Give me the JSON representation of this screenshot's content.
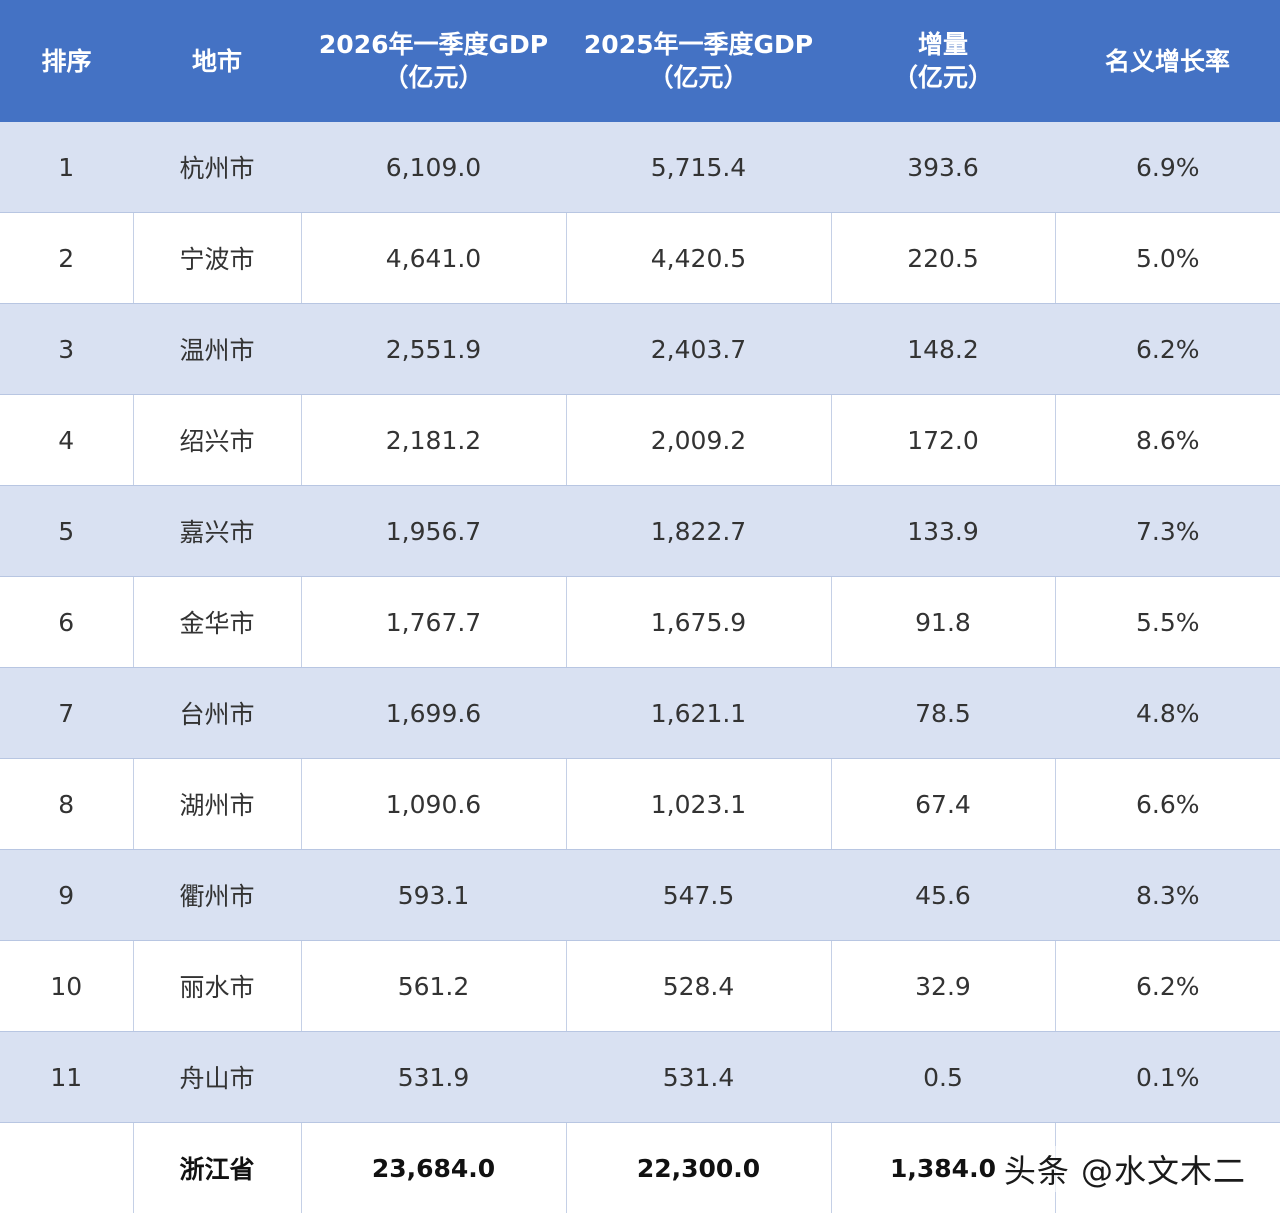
{
  "headers": {
    "rank": "排序",
    "city": "地市",
    "gdp2026_l1": "2026年一季度GDP",
    "gdp2026_l2": "（亿元）",
    "gdp2025_l1": "2025年一季度GDP",
    "gdp2025_l2": "（亿元）",
    "increase_l1": "增量",
    "increase_l2": "（亿元）",
    "growth": "名义增长率"
  },
  "rows": [
    {
      "rank": "1",
      "city": "杭州市",
      "gdp2026": "6,109.0",
      "gdp2025": "5,715.4",
      "increase": "393.6",
      "growth": "6.9%"
    },
    {
      "rank": "2",
      "city": "宁波市",
      "gdp2026": "4,641.0",
      "gdp2025": "4,420.5",
      "increase": "220.5",
      "growth": "5.0%"
    },
    {
      "rank": "3",
      "city": "温州市",
      "gdp2026": "2,551.9",
      "gdp2025": "2,403.7",
      "increase": "148.2",
      "growth": "6.2%"
    },
    {
      "rank": "4",
      "city": "绍兴市",
      "gdp2026": "2,181.2",
      "gdp2025": "2,009.2",
      "increase": "172.0",
      "growth": "8.6%"
    },
    {
      "rank": "5",
      "city": "嘉兴市",
      "gdp2026": "1,956.7",
      "gdp2025": "1,822.7",
      "increase": "133.9",
      "growth": "7.3%"
    },
    {
      "rank": "6",
      "city": "金华市",
      "gdp2026": "1,767.7",
      "gdp2025": "1,675.9",
      "increase": "91.8",
      "growth": "5.5%"
    },
    {
      "rank": "7",
      "city": "台州市",
      "gdp2026": "1,699.6",
      "gdp2025": "1,621.1",
      "increase": "78.5",
      "growth": "4.8%"
    },
    {
      "rank": "8",
      "city": "湖州市",
      "gdp2026": "1,090.6",
      "gdp2025": "1,023.1",
      "increase": "67.4",
      "growth": "6.6%"
    },
    {
      "rank": "9",
      "city": "衢州市",
      "gdp2026": "593.1",
      "gdp2025": "547.5",
      "increase": "45.6",
      "growth": "8.3%"
    },
    {
      "rank": "10",
      "city": "丽水市",
      "gdp2026": "561.2",
      "gdp2025": "528.4",
      "increase": "32.9",
      "growth": "6.2%"
    },
    {
      "rank": "11",
      "city": "舟山市",
      "gdp2026": "531.9",
      "gdp2025": "531.4",
      "increase": "0.5",
      "growth": "0.1%"
    }
  ],
  "total": {
    "rank": "",
    "city": "浙江省",
    "gdp2026": "23,684.0",
    "gdp2025": "22,300.0",
    "increase": "1,384.0",
    "growth": ""
  },
  "watermark": "头条 @水文木二",
  "colors": {
    "header_bg": "#4472c4",
    "band_bg": "#d9e1f2",
    "plain_bg": "#ffffff"
  }
}
